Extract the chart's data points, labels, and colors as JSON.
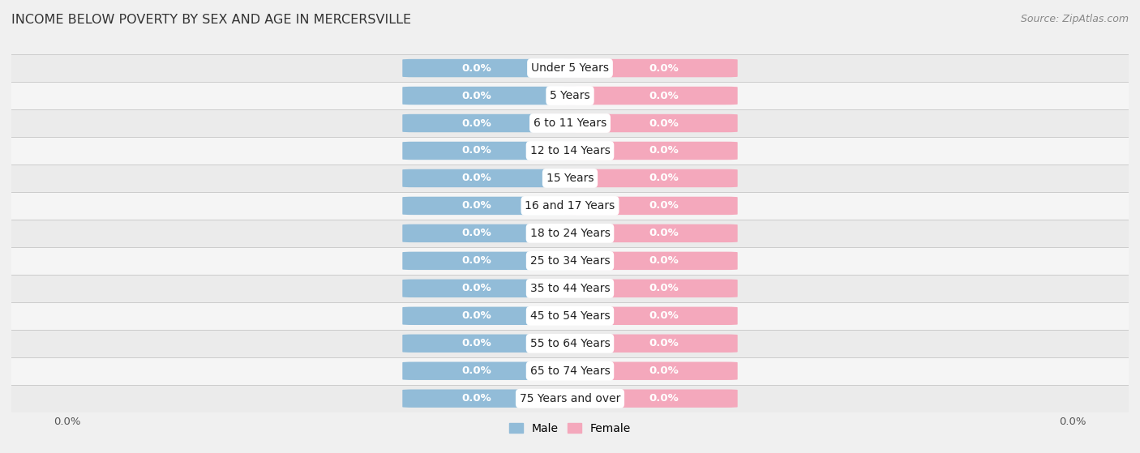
{
  "title": "INCOME BELOW POVERTY BY SEX AND AGE IN MERCERSVILLE",
  "source": "Source: ZipAtlas.com",
  "categories": [
    "Under 5 Years",
    "5 Years",
    "6 to 11 Years",
    "12 to 14 Years",
    "15 Years",
    "16 and 17 Years",
    "18 to 24 Years",
    "25 to 34 Years",
    "35 to 44 Years",
    "45 to 54 Years",
    "55 to 64 Years",
    "65 to 74 Years",
    "75 Years and over"
  ],
  "male_values": [
    0.0,
    0.0,
    0.0,
    0.0,
    0.0,
    0.0,
    0.0,
    0.0,
    0.0,
    0.0,
    0.0,
    0.0,
    0.0
  ],
  "female_values": [
    0.0,
    0.0,
    0.0,
    0.0,
    0.0,
    0.0,
    0.0,
    0.0,
    0.0,
    0.0,
    0.0,
    0.0,
    0.0
  ],
  "male_color": "#92bcd8",
  "female_color": "#f4a8bc",
  "male_label": "Male",
  "female_label": "Female",
  "fig_bg": "#f0f0f0",
  "row_colors": [
    "#ebebeb",
    "#f5f5f5"
  ],
  "title_fontsize": 11.5,
  "bar_label_fontsize": 9.5,
  "cat_label_fontsize": 10,
  "tick_fontsize": 9.5,
  "source_fontsize": 9
}
